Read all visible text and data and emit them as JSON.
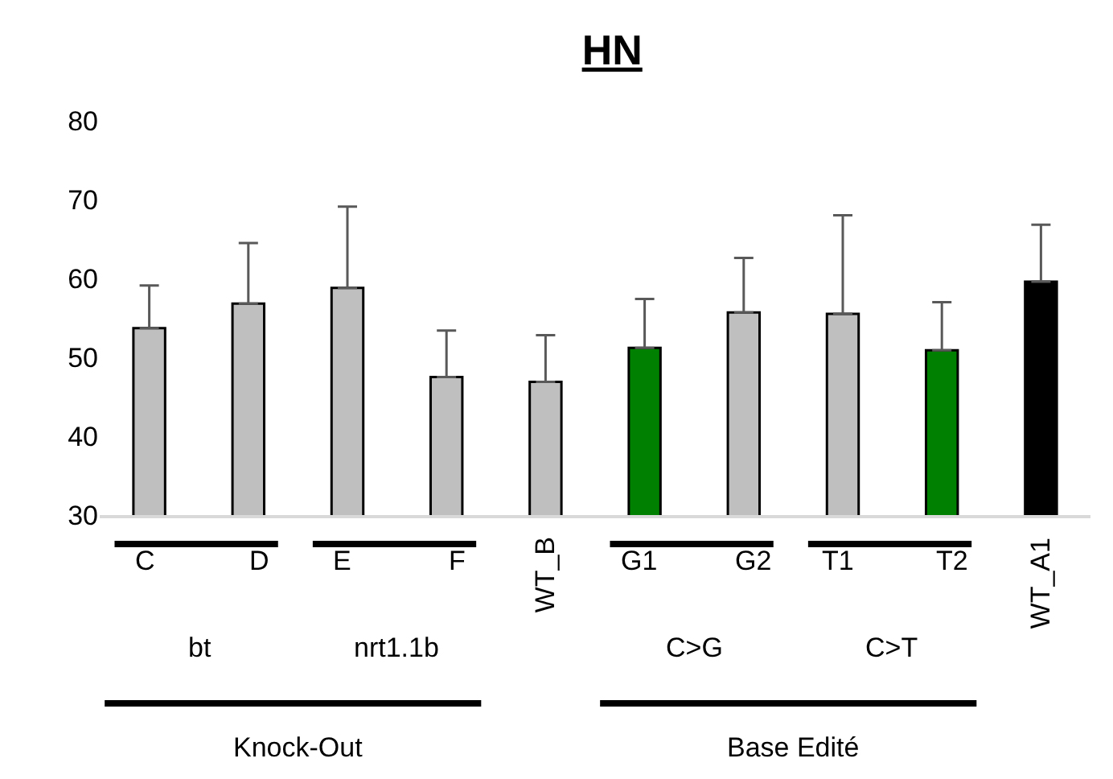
{
  "chart_data": {
    "type": "bar",
    "title": "HN",
    "categories": [
      "C",
      "D",
      "E",
      "F",
      "WT_B",
      "G1",
      "G2",
      "T1",
      "T2",
      "WT_A1"
    ],
    "values": [
      53.7,
      56.8,
      58.8,
      47.5,
      46.9,
      51.2,
      55.7,
      55.5,
      50.9,
      59.6
    ],
    "colors": [
      "#bfbfbf",
      "#bfbfbf",
      "#bfbfbf",
      "#bfbfbf",
      "#bfbfbf",
      "#008000",
      "#bfbfbf",
      "#bfbfbf",
      "#008000",
      "#000000"
    ],
    "errors": [
      [
        53.7,
        59.1
      ],
      [
        56.8,
        64.5
      ],
      [
        58.8,
        69.1
      ],
      [
        47.5,
        53.4
      ],
      [
        46.9,
        52.8
      ],
      [
        51.2,
        57.4
      ],
      [
        55.7,
        62.6
      ],
      [
        55.5,
        68.0
      ],
      [
        50.9,
        57.0
      ],
      [
        59.6,
        66.8
      ]
    ],
    "annotations": [
      "bt",
      "nrt1.1b",
      "C>G",
      "C>T",
      "Knock-Out",
      "Base Edité"
    ],
    "ylim": [
      30,
      80
    ],
    "yticks": [
      30,
      40,
      50,
      60,
      70,
      80
    ],
    "grid": false,
    "legend": false
  }
}
